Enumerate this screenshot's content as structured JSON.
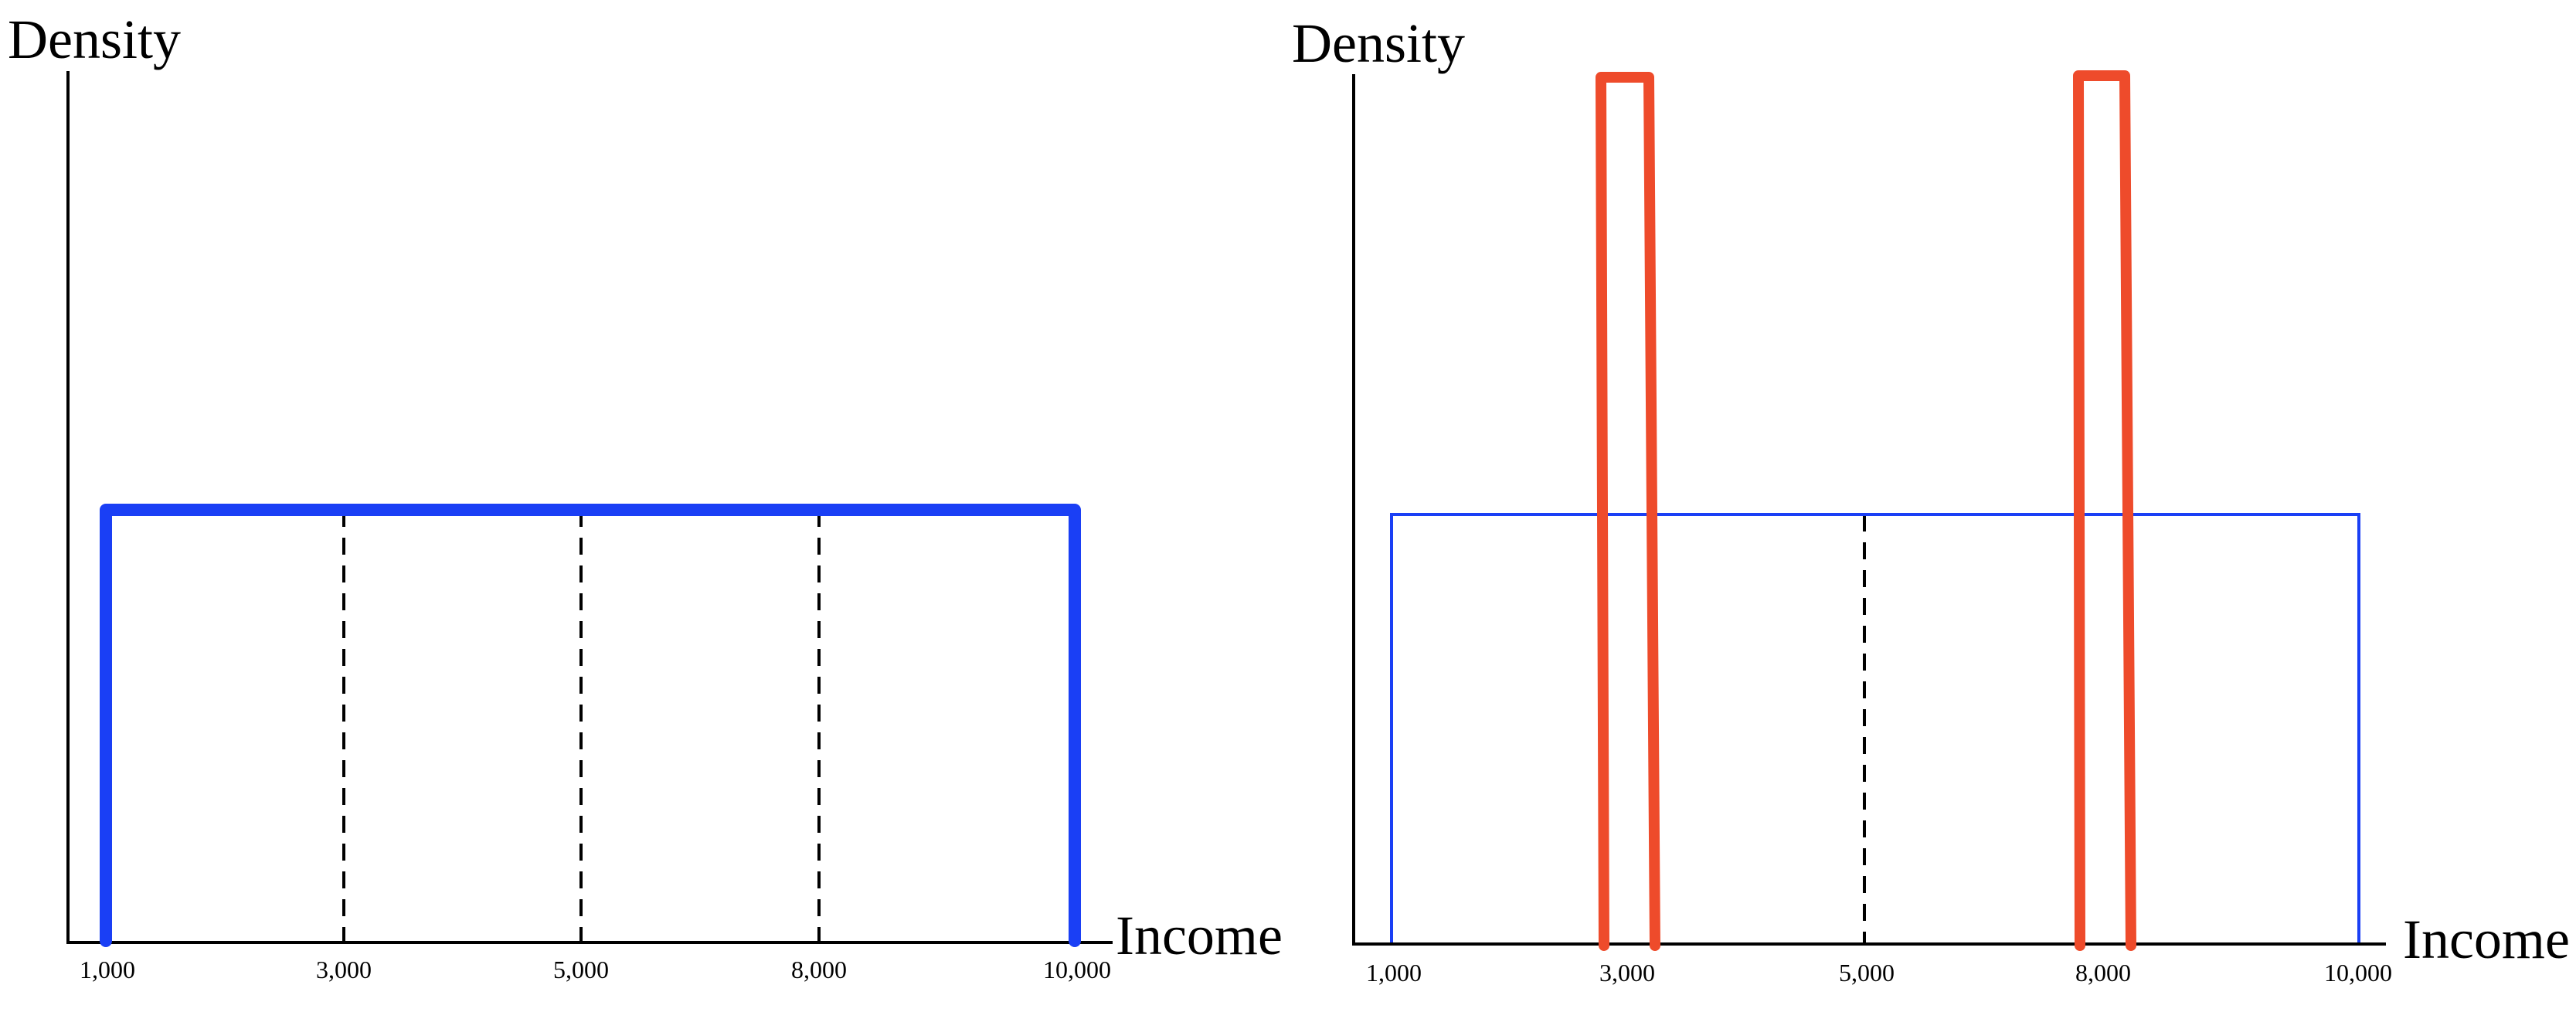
{
  "colors": {
    "uniform": "#1a3ff5",
    "bimodal": "#ee4b2b",
    "axis": "#000000",
    "guide": "#000000"
  },
  "panels": [
    {
      "ylabel": "Density",
      "xlabel": "Income",
      "ticks": [
        "1,000",
        "3,000",
        "5,000",
        "8,000",
        "10,000"
      ],
      "dashed_guides_at": [
        "3,000",
        "5,000",
        "8,000"
      ],
      "curve": "uniform-thick"
    },
    {
      "ylabel": "Density",
      "xlabel": "Income",
      "ticks": [
        "1,000",
        "3,000",
        "5,000",
        "8,000",
        "10,000"
      ],
      "dashed_guides_at": [
        "5,000"
      ],
      "curve": "uniform-thin-with-spikes",
      "spikes_at": [
        "3,000",
        "8,000"
      ]
    }
  ]
}
